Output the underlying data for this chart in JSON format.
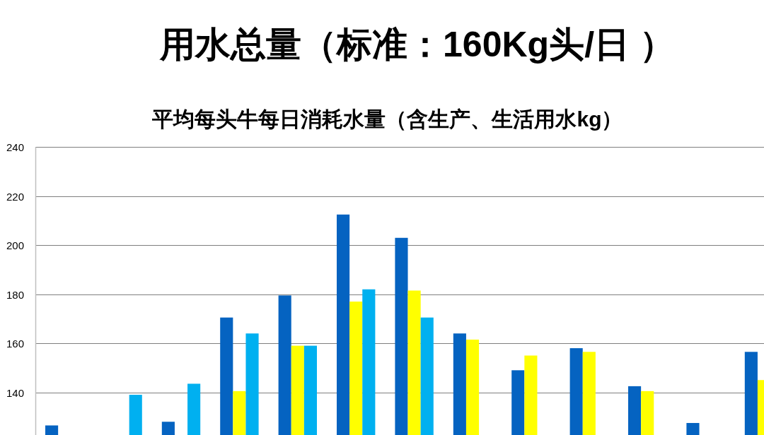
{
  "chart_data": {
    "type": "bar",
    "title": "用水总量（标准：160Kg头/日 ）",
    "subtitle": "平均每头牛每日消耗水量（含生产、生活用水kg）",
    "categories": [
      null,
      null,
      null,
      null,
      null,
      null,
      null,
      null,
      null,
      null,
      null,
      null,
      null
    ],
    "series": [
      {
        "color": "#0563c1",
        "values": [
          126.5,
          null,
          128,
          170.5,
          179.5,
          212.5,
          203,
          164,
          149,
          158,
          142.5,
          127.5,
          156.5
        ]
      },
      {
        "color": "#ffff00",
        "values": [
          null,
          null,
          null,
          140.5,
          159,
          177,
          181.5,
          161.5,
          155,
          156.5,
          140.5,
          null,
          145
        ]
      },
      {
        "color": "#00b0f0",
        "values": [
          null,
          139,
          143.5,
          164,
          159,
          182,
          170.5,
          null,
          null,
          null,
          null,
          null,
          null
        ]
      }
    ],
    "ylim": [
      122.6,
      240
    ],
    "yticks": [
      140,
      160,
      180,
      200,
      220,
      240
    ],
    "grid": "y",
    "tick_labels": "y"
  }
}
